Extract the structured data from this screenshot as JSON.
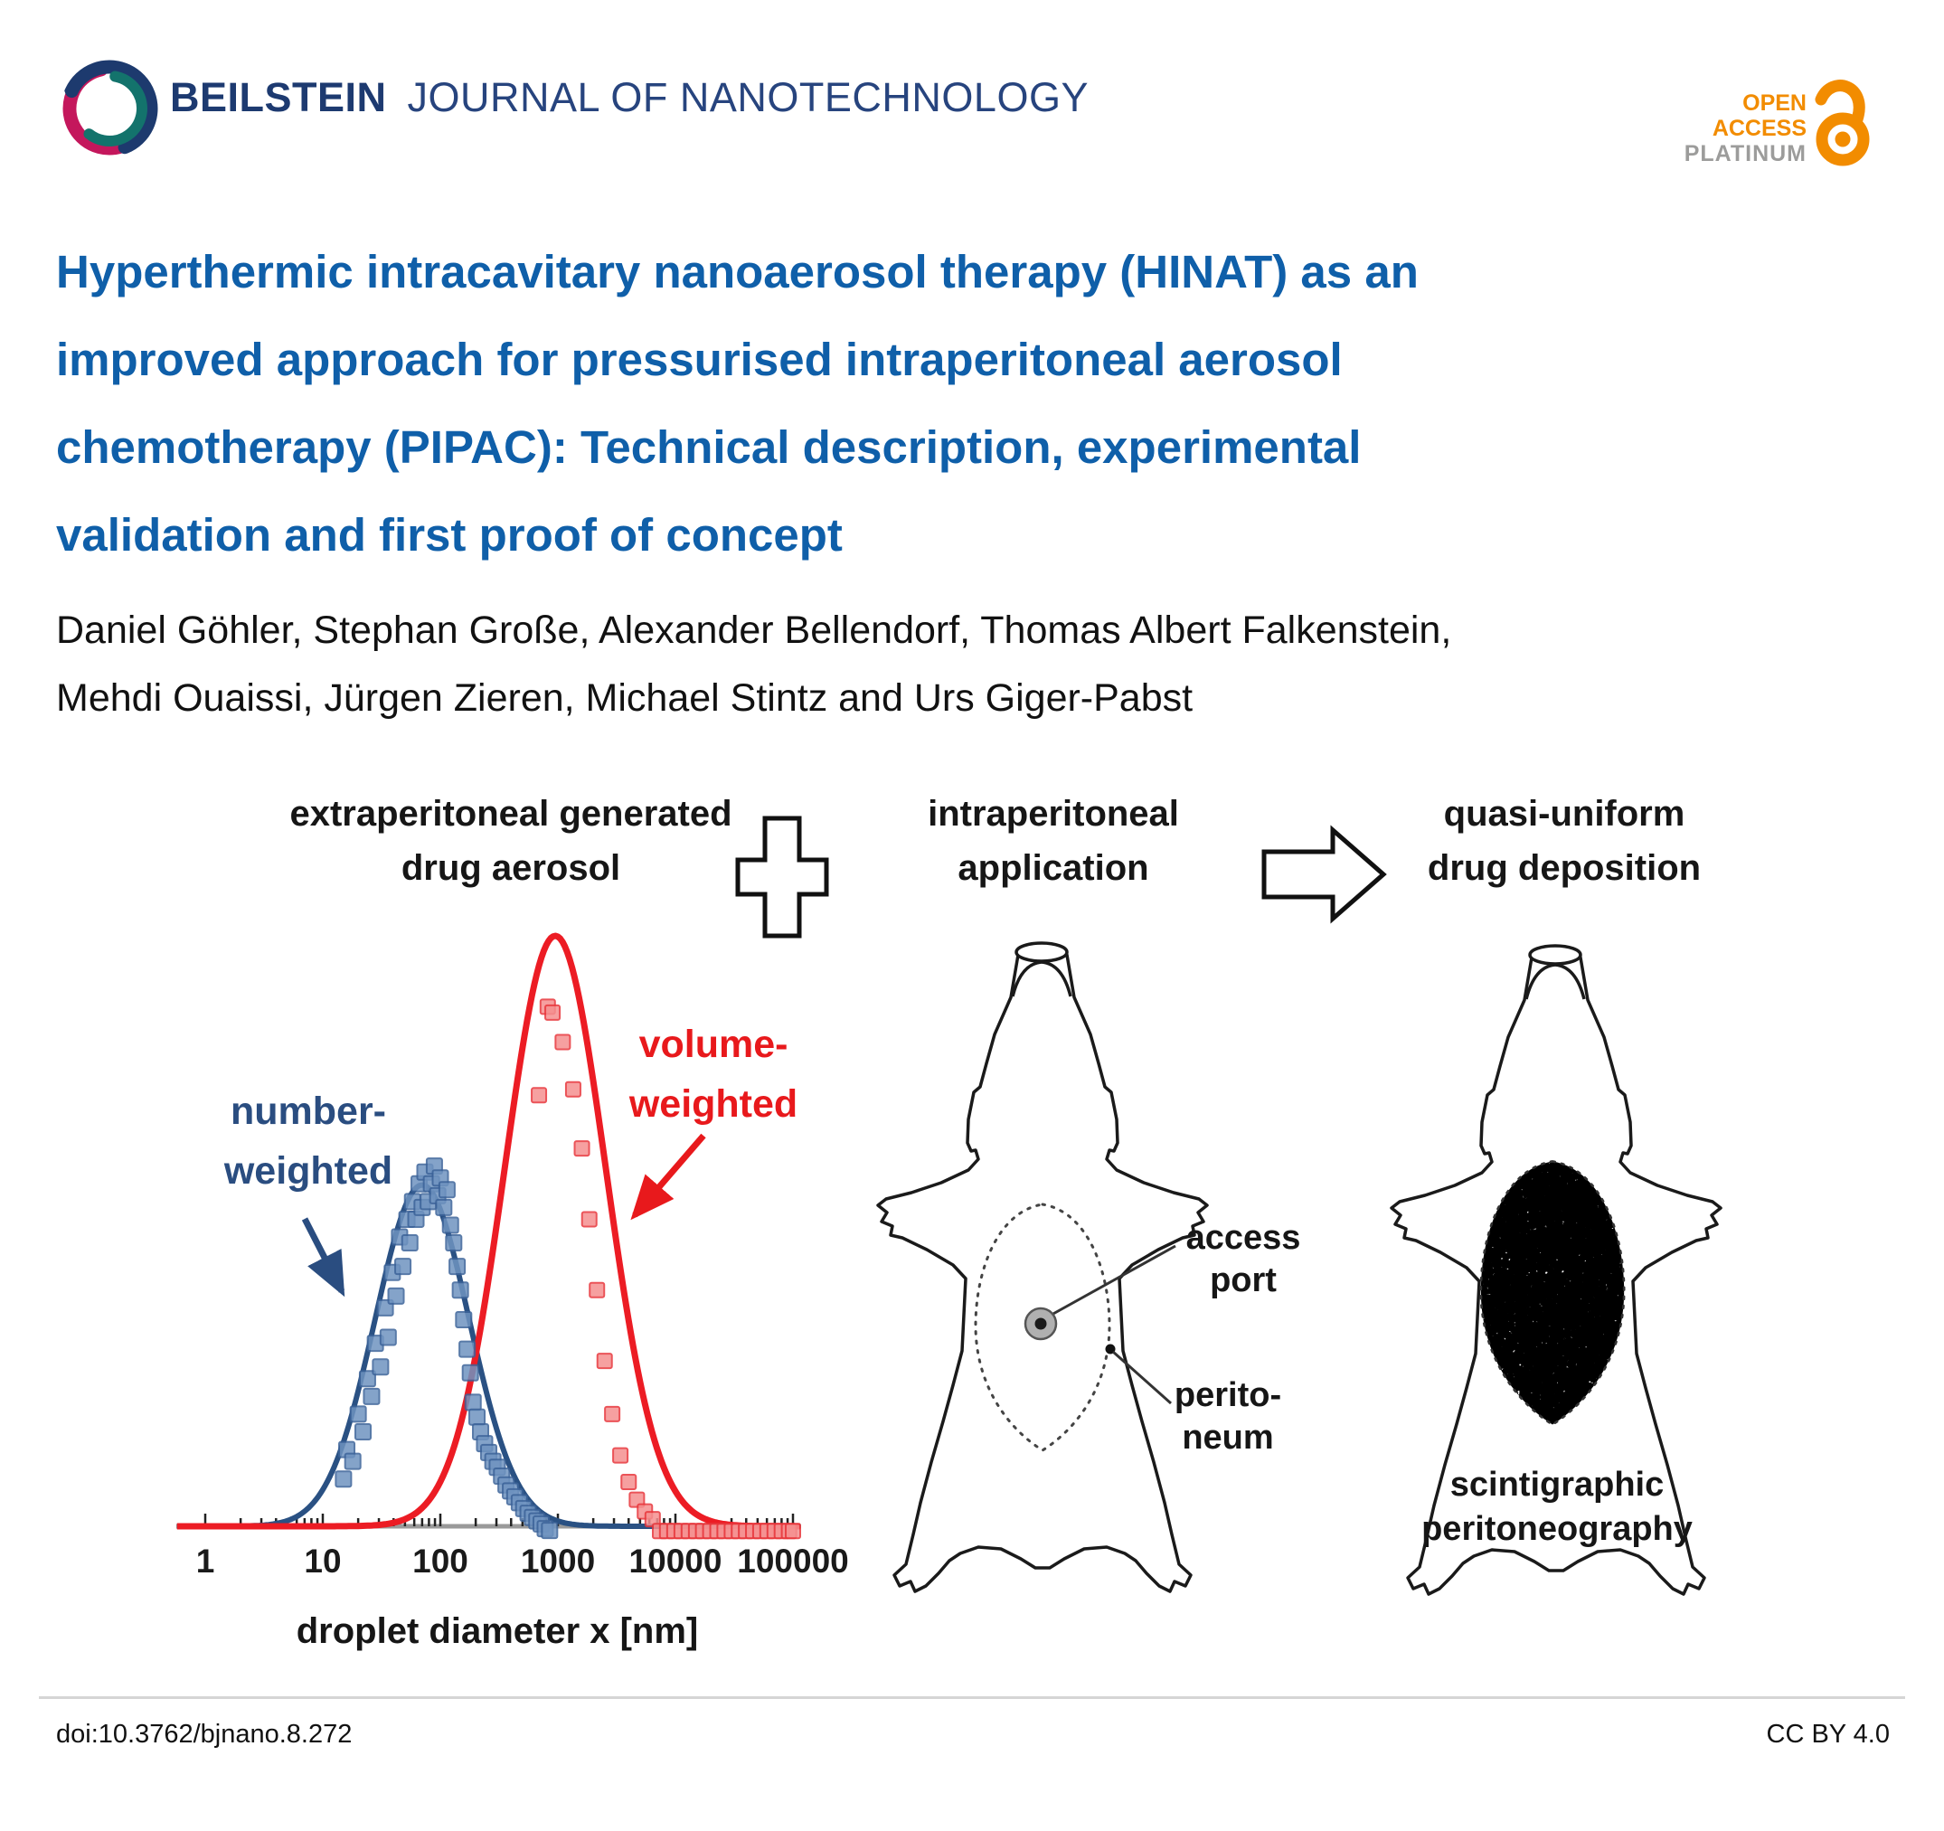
{
  "header": {
    "journal_bold": "BEILSTEIN",
    "journal_rest": "JOURNAL OF NANOTECHNOLOGY",
    "badge": {
      "line1": "OPEN",
      "line2": "ACCESS",
      "line3": "PLATINUM"
    },
    "colors": {
      "journal_navy": "#1d3a70",
      "badge_orange": "#f28c00",
      "badge_gray": "#9c9c9b",
      "logo_navy": "#1d3a6e",
      "logo_teal": "#13736c",
      "logo_magenta": "#c4175c"
    }
  },
  "article": {
    "title_lines": [
      "Hyperthermic intracavitary nanoaerosol therapy (HINAT) as an",
      "improved approach for pressurised intraperitoneal aerosol",
      "chemotherapy (PIPAC): Technical description, experimental",
      "validation and first proof of concept"
    ],
    "authors_lines": [
      "Daniel Göhler, Stephan Große, Alexander Bellendorf, Thomas Albert Falkenstein,",
      "Mehdi Ouaissi, Jürgen Zieren, Michael Stintz and Urs Giger-Pabst"
    ]
  },
  "graphic": {
    "steps": [
      {
        "line1": "extraperitoneal generated",
        "line2": "drug aerosol"
      },
      {
        "line1": "intraperitoneal",
        "line2": "application"
      },
      {
        "line1": "quasi-uniform",
        "line2": "drug deposition"
      }
    ],
    "rat_labels": {
      "access_port_lines": [
        "access",
        "port"
      ],
      "peritoneum_lines": [
        "perito-",
        "neum"
      ],
      "scintigraphy_lines": [
        "scintigraphic",
        "peritoneography"
      ]
    }
  },
  "chart_data": {
    "type": "line+scatter",
    "x_scale": "log",
    "xlabel": "droplet diameter x [nm]",
    "x_ticks": [
      1,
      10,
      100,
      1000,
      10000,
      100000
    ],
    "x_range": [
      1,
      150000
    ],
    "ylabel": "",
    "y_range_rel": [
      0,
      1
    ],
    "grid": false,
    "legend_position": "inline-annotations",
    "series": [
      {
        "name": "number-weighted",
        "color": "#2a5183",
        "scatter_fill": "#6f93c0",
        "scatter_stroke": "#3c6399",
        "curve": {
          "shape": "lognormal",
          "mode_nm": 70,
          "peak_rel": 0.578,
          "sigma_log10": 0.4
        },
        "points": [
          [
            15,
            0.08
          ],
          [
            16,
            0.13
          ],
          [
            18,
            0.11
          ],
          [
            20,
            0.19
          ],
          [
            22,
            0.16
          ],
          [
            24,
            0.25
          ],
          [
            26,
            0.22
          ],
          [
            28,
            0.31
          ],
          [
            31,
            0.27
          ],
          [
            34,
            0.37
          ],
          [
            36,
            0.32
          ],
          [
            39,
            0.43
          ],
          [
            42,
            0.39
          ],
          [
            45,
            0.49
          ],
          [
            48,
            0.44
          ],
          [
            52,
            0.52
          ],
          [
            55,
            0.48
          ],
          [
            58,
            0.55
          ],
          [
            62,
            0.52
          ],
          [
            66,
            0.58
          ],
          [
            70,
            0.54
          ],
          [
            74,
            0.6
          ],
          [
            79,
            0.55
          ],
          [
            84,
            0.58
          ],
          [
            89,
            0.61
          ],
          [
            95,
            0.56
          ],
          [
            100,
            0.59
          ],
          [
            107,
            0.54
          ],
          [
            114,
            0.57
          ],
          [
            122,
            0.51
          ],
          [
            130,
            0.48
          ],
          [
            139,
            0.44
          ],
          [
            148,
            0.4
          ],
          [
            158,
            0.35
          ],
          [
            169,
            0.3
          ],
          [
            180,
            0.26
          ],
          [
            190,
            0.21
          ],
          [
            205,
            0.185
          ],
          [
            220,
            0.16
          ],
          [
            238,
            0.14
          ],
          [
            258,
            0.125
          ],
          [
            280,
            0.11
          ],
          [
            305,
            0.1
          ],
          [
            332,
            0.085
          ],
          [
            362,
            0.07
          ],
          [
            395,
            0.06
          ],
          [
            430,
            0.05
          ],
          [
            470,
            0.04
          ],
          [
            512,
            0.03
          ],
          [
            558,
            0.022
          ],
          [
            608,
            0.015
          ],
          [
            662,
            0.009
          ],
          [
            720,
            0.004
          ],
          [
            780,
            -0.004
          ],
          [
            850,
            -0.007
          ]
        ]
      },
      {
        "name": "volume-weighted",
        "color": "#ec1c24",
        "scatter_fill": "#f59090",
        "scatter_stroke": "#e8363b",
        "curve": {
          "shape": "lognormal",
          "mode_nm": 950,
          "peak_rel": 1.0,
          "sigma_log10": 0.43
        },
        "points": [
          [
            690,
            0.73
          ],
          [
            820,
            0.88
          ],
          [
            900,
            0.87
          ],
          [
            1100,
            0.82
          ],
          [
            1350,
            0.74
          ],
          [
            1600,
            0.64
          ],
          [
            1850,
            0.52
          ],
          [
            2150,
            0.4
          ],
          [
            2500,
            0.28
          ],
          [
            2900,
            0.19
          ],
          [
            3400,
            0.12
          ],
          [
            4000,
            0.075
          ],
          [
            4700,
            0.045
          ],
          [
            5500,
            0.025
          ],
          [
            6400,
            0.012
          ]
        ],
        "baseline_points_nm": [
          7400,
          8500,
          9800,
          11300,
          13000,
          15000,
          17200,
          19800,
          22800,
          26200,
          30200,
          34700,
          39900,
          45900,
          52800,
          60700,
          69900,
          80400,
          92500,
          100000
        ],
        "baseline_rel": -0.008
      }
    ],
    "annotations": [
      {
        "lines": [
          "number-",
          "weighted"
        ],
        "color": "#2a4d80",
        "points_to": "number-weighted curve"
      },
      {
        "lines": [
          "volume-",
          "weighted"
        ],
        "color": "#e8191c",
        "points_to": "volume-weighted curve"
      }
    ]
  },
  "footer": {
    "doi": "doi:10.3762/bjnano.8.272",
    "license": "CC BY 4.0"
  }
}
